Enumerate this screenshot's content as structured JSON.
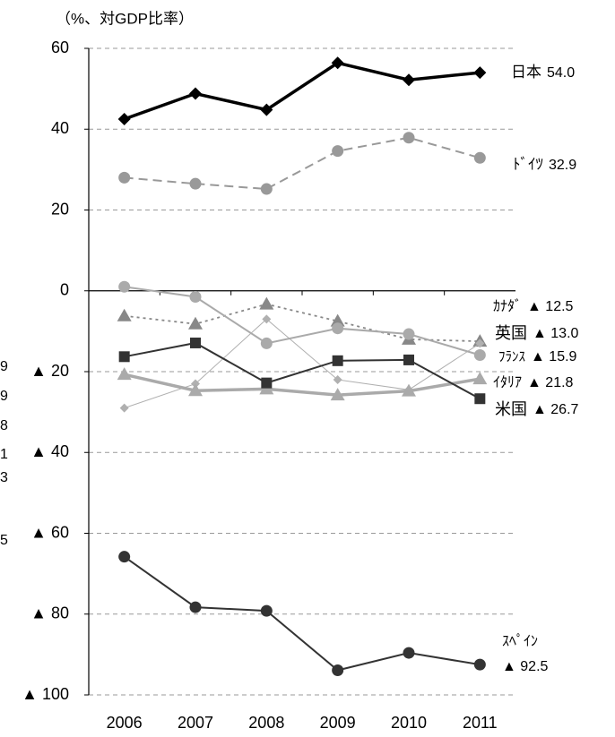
{
  "chart_data": {
    "type": "line",
    "unit_label": "（%、対GDP比率）",
    "categories": [
      "2006",
      "2007",
      "2008",
      "2009",
      "2010",
      "2011"
    ],
    "ylim": [
      -100,
      60
    ],
    "yticks": [
      60,
      40,
      20,
      0,
      {
        "value": -20,
        "label": "▲ 20"
      },
      {
        "value": -40,
        "label": "▲ 40"
      },
      {
        "value": -60,
        "label": "▲ 60"
      },
      {
        "value": -80,
        "label": "▲ 80"
      },
      {
        "value": -100,
        "label": "▲ 100"
      }
    ],
    "grid": true,
    "cut_off_text": [
      "9",
      "9",
      "8",
      "1",
      "3",
      "5"
    ],
    "series": [
      {
        "name": "日本",
        "color": "#000000",
        "marker": "diamond",
        "style": "bold",
        "values": [
          42.5,
          48.8,
          44.8,
          56.4,
          52.2,
          54.0
        ],
        "value_labels": [
          null,
          null,
          null,
          null,
          null,
          "54.0"
        ]
      },
      {
        "name": "ﾄﾞｲﾂ",
        "color": "#999999",
        "marker": "circle",
        "style": "dashed",
        "values": [
          28.0,
          26.5,
          25.2,
          34.6,
          37.9,
          32.9
        ],
        "value_labels": [
          null,
          null,
          null,
          null,
          null,
          "32.9"
        ]
      },
      {
        "name": "ｶﾅﾀﾞ",
        "color": "#888888",
        "marker": "triangle",
        "style": "dotted",
        "values": [
          -6.2,
          -8.2,
          -3.3,
          -7.5,
          -12.0,
          -12.5
        ],
        "value_labels": [
          null,
          null,
          null,
          null,
          null,
          "▲ 12.5"
        ]
      },
      {
        "name": "英国",
        "color": "#b0b0b0",
        "marker": "diamond",
        "style": "thin",
        "values": [
          -29.0,
          -23.0,
          -7.0,
          -22.0,
          -24.5,
          -13.0
        ],
        "value_labels": [
          null,
          null,
          null,
          null,
          null,
          "▲ 13.0"
        ]
      },
      {
        "name": "ﾌﾗﾝｽ",
        "color": "#aaaaaa",
        "marker": "circle",
        "style": "solid",
        "values": [
          1.0,
          -1.5,
          -13.0,
          -9.3,
          -10.7,
          -15.9
        ],
        "value_labels": [
          null,
          null,
          null,
          null,
          null,
          "▲ 15.9"
        ]
      },
      {
        "name": "ｲﾀﾘｱ",
        "color": "#aaaaaa",
        "marker": "triangle",
        "style": "bold",
        "values": [
          -20.7,
          -24.7,
          -24.3,
          -25.8,
          -24.8,
          -21.8
        ],
        "value_labels": [
          null,
          null,
          null,
          null,
          null,
          "▲ 21.8"
        ]
      },
      {
        "name": "米国",
        "color": "#333333",
        "marker": "square",
        "style": "solid",
        "values": [
          -16.3,
          -12.9,
          -22.8,
          -17.3,
          -17.1,
          -26.7
        ],
        "value_labels": [
          null,
          null,
          null,
          null,
          null,
          "▲ 26.7"
        ]
      },
      {
        "name": "ｽﾍﾟｲﾝ",
        "color": "#333333",
        "marker": "circle",
        "style": "solid",
        "values": [
          -65.8,
          -78.3,
          -79.2,
          -93.9,
          -89.6,
          -92.5
        ],
        "value_labels": [
          null,
          null,
          null,
          null,
          null,
          "▲ 92.5"
        ]
      }
    ]
  }
}
